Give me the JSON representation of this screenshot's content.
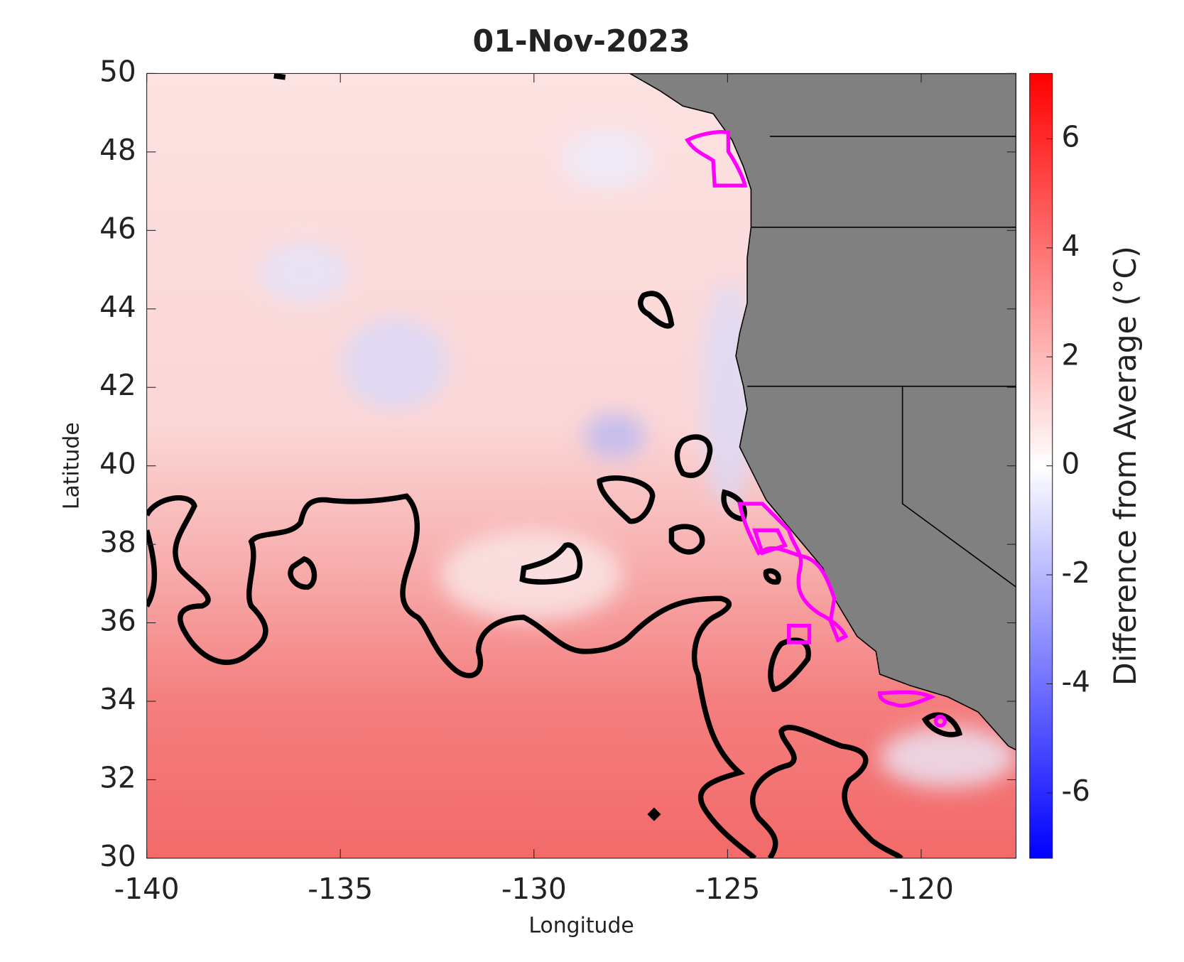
{
  "chart_data": {
    "type": "heatmap",
    "title": "01-Nov-2023",
    "xlabel": "Longitude",
    "ylabel": "Latitude",
    "xlim": [
      -140,
      -117.55
    ],
    "ylim": [
      30,
      50
    ],
    "xticks": [
      -140,
      -135,
      -130,
      -125,
      -120
    ],
    "yticks": [
      30,
      32,
      34,
      36,
      38,
      40,
      42,
      44,
      46,
      48,
      50
    ],
    "colorbar": {
      "label": "Difference from Average (°C)",
      "clim": [
        -7.2,
        7.2
      ],
      "ticks": [
        -6,
        -4,
        -2,
        0,
        2,
        4,
        6
      ]
    }
  }
}
